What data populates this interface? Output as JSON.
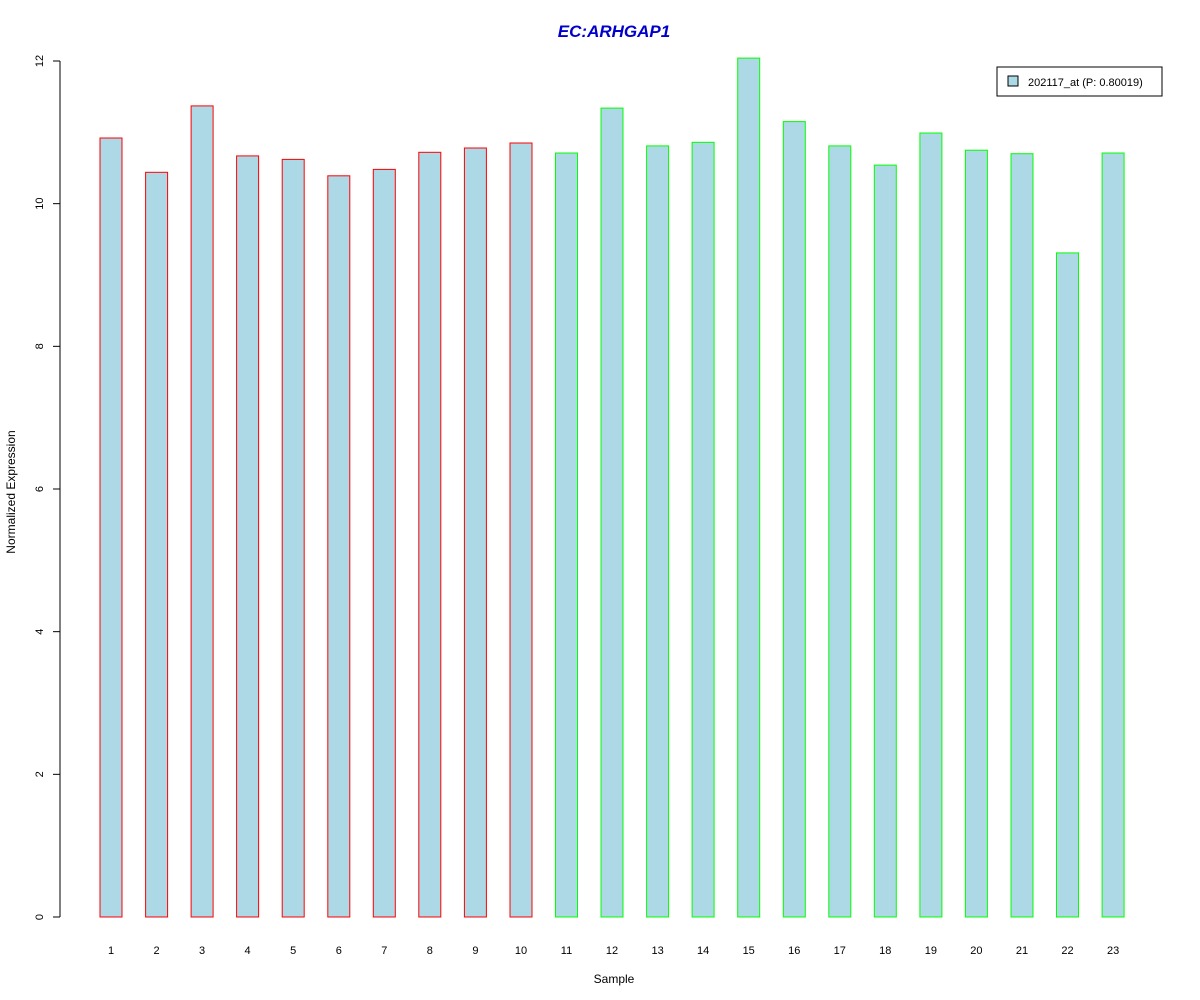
{
  "chart_data": {
    "type": "bar",
    "title": "EC:ARHGAP1",
    "xlabel": "Sample",
    "ylabel": "Normalized Expression",
    "categories": [
      "1",
      "2",
      "3",
      "4",
      "5",
      "6",
      "7",
      "8",
      "9",
      "10",
      "11",
      "12",
      "13",
      "14",
      "15",
      "16",
      "17",
      "18",
      "19",
      "20",
      "21",
      "22",
      "23"
    ],
    "series": [
      {
        "name": "202117_at (P: 0.80019)",
        "values": [
          10.92,
          10.44,
          11.37,
          10.67,
          10.62,
          10.39,
          10.48,
          10.72,
          10.78,
          10.85,
          10.71,
          11.34,
          10.81,
          10.86,
          12.04,
          11.15,
          10.81,
          10.54,
          10.99,
          10.75,
          10.7,
          9.31,
          10.71
        ]
      }
    ],
    "bar_outline_groups": [
      {
        "samples": "1-10",
        "color": "#ff0000"
      },
      {
        "samples": "11-23",
        "color": "#00ff00"
      }
    ],
    "ylim": [
      0,
      12
    ],
    "yticks": [
      0,
      2,
      4,
      6,
      8,
      10,
      12
    ],
    "grid": false,
    "legend_position": "top-right",
    "colors": {
      "bar_fill": "#add8e6",
      "title": "#0000cc",
      "group1_outline": "#ff0000",
      "group2_outline": "#00ff00"
    }
  }
}
